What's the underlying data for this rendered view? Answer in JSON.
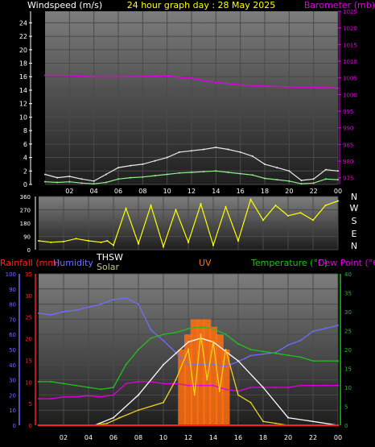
{
  "header": {
    "left_title": "Windspeed (m/s)",
    "center_title": "24 hour graph day : 28 May 2025",
    "right_title": "Barometer (mb)"
  },
  "time_ticks": [
    "02",
    "04",
    "06",
    "08",
    "10",
    "12",
    "14",
    "16",
    "18",
    "20",
    "22",
    "00"
  ],
  "colors": {
    "background": "#000000",
    "plot_top": "#7d7d7d",
    "plot_bottom": "#202020",
    "barometer": "#e000e0",
    "wind_gust": "#e8e8e8",
    "wind_avg": "#90f090",
    "direction": "#ffff00",
    "rainfall": "#ff2020",
    "humidity": "#6e6eff",
    "thsw": "#ffffff",
    "solar": "#c8c890",
    "uv": "#ff7010",
    "temperature": "#20c020",
    "dew_point": "#e000e0",
    "solar_line": "#f0d020"
  },
  "panel_wind": {
    "type": "line",
    "x_hours": [
      0,
      24
    ],
    "wind_axis": {
      "range": [
        0,
        25
      ],
      "ticks": [
        "0",
        "2",
        "4",
        "6",
        "8",
        "10",
        "12",
        "14",
        "16",
        "18",
        "20",
        "22",
        "24"
      ]
    },
    "baro_axis": {
      "range": [
        973,
        1025
      ],
      "ticks": [
        "975",
        "980",
        "985",
        "990",
        "995",
        "1000",
        "1005",
        "1010",
        "1015",
        "1020",
        "1025"
      ]
    },
    "series": [
      {
        "key": "barometer",
        "x": [
          0,
          2,
          4,
          6,
          8,
          9,
          10,
          11,
          12,
          13,
          14,
          15,
          16,
          18,
          20,
          22,
          24
        ],
        "y": [
          1005.8,
          1005.7,
          1005.3,
          1005.3,
          1005.4,
          1005.5,
          1005.6,
          1005.2,
          1004.9,
          1004.2,
          1003.6,
          1003.3,
          1002.9,
          1002.5,
          1002.3,
          1002.2,
          1001.9
        ]
      },
      {
        "key": "wind_gust",
        "x": [
          0,
          1,
          2,
          3,
          4,
          5,
          6,
          7,
          8,
          9,
          10,
          11,
          12,
          13,
          14,
          15,
          16,
          17,
          18,
          19,
          20,
          21,
          22,
          23,
          24
        ],
        "y": [
          1.5,
          1.0,
          1.2,
          0.8,
          0.5,
          1.5,
          2.5,
          2.8,
          3.0,
          3.5,
          4.0,
          4.8,
          5.0,
          5.2,
          5.5,
          5.2,
          4.8,
          4.2,
          3.0,
          2.5,
          2.0,
          0.6,
          0.8,
          2.2,
          2.0
        ]
      },
      {
        "key": "wind_avg",
        "x": [
          0,
          1,
          2,
          3,
          4,
          5,
          6,
          7,
          8,
          9,
          10,
          11,
          12,
          13,
          14,
          15,
          16,
          17,
          18,
          19,
          20,
          21,
          22,
          23,
          24
        ],
        "y": [
          0.4,
          0.3,
          0.4,
          0.2,
          0.1,
          0.3,
          0.8,
          1.0,
          1.1,
          1.3,
          1.5,
          1.7,
          1.8,
          1.9,
          2.0,
          1.8,
          1.6,
          1.4,
          0.9,
          0.7,
          0.5,
          0.1,
          0.2,
          0.8,
          0.7
        ]
      }
    ]
  },
  "panel_direction": {
    "type": "line",
    "deg_axis": {
      "range": [
        0,
        360
      ],
      "ticks": [
        "0",
        "90",
        "180",
        "270",
        "360"
      ]
    },
    "compass": [
      "N",
      "W",
      "S",
      "E",
      "N"
    ],
    "series": [
      {
        "key": "direction",
        "x": [
          0,
          1,
          2,
          3,
          4,
          5,
          5.5,
          6,
          7,
          8,
          9,
          10,
          11,
          12,
          13,
          14,
          15,
          16,
          17,
          18,
          19,
          20,
          21,
          22,
          23,
          24
        ],
        "y": [
          60,
          50,
          55,
          75,
          60,
          50,
          60,
          30,
          280,
          40,
          300,
          20,
          270,
          50,
          310,
          30,
          290,
          60,
          340,
          200,
          300,
          230,
          250,
          200,
          300,
          330
        ]
      }
    ]
  },
  "panel_bottom": {
    "labels": {
      "rainfall": "Rainfall (mm)",
      "humidity": "Humidity",
      "thsw": "THSW",
      "solar": "Solar",
      "uv": "UV",
      "temperature": "Temperature (°C)",
      "dew_point": "Dew Point (°C)"
    },
    "humidity_axis": {
      "range": [
        0,
        100
      ],
      "ticks": [
        "0",
        "10",
        "20",
        "30",
        "40",
        "50",
        "60",
        "70",
        "80",
        "90",
        "100"
      ]
    },
    "rain_axis": {
      "range": [
        0,
        35
      ],
      "ticks": [
        "0",
        "5",
        "10",
        "15",
        "20",
        "25",
        "30",
        "35"
      ]
    },
    "temp_axis": {
      "range": [
        0,
        40
      ],
      "ticks": [
        "0",
        "5",
        "10",
        "15",
        "20",
        "25",
        "30",
        "35",
        "40"
      ]
    },
    "series": [
      {
        "key": "humidity",
        "x": [
          0,
          1,
          2,
          3,
          4,
          5,
          6,
          7,
          8,
          9,
          10,
          11,
          12,
          13,
          14,
          15,
          16,
          17,
          18,
          19,
          20,
          21,
          22,
          23,
          24
        ],
        "y": [
          74,
          73,
          75,
          76,
          78,
          80,
          83,
          84,
          80,
          63,
          56,
          48,
          40,
          40,
          40,
          39,
          42,
          46,
          47,
          48,
          53,
          56,
          62,
          64,
          66
        ]
      },
      {
        "key": "temperature",
        "x": [
          0,
          1,
          2,
          3,
          4,
          5,
          6,
          7,
          8,
          9,
          10,
          11,
          12,
          13,
          14,
          15,
          16,
          17,
          18,
          19,
          20,
          21,
          22,
          23,
          24
        ],
        "y": [
          11.5,
          11.5,
          11.0,
          10.5,
          10.0,
          9.5,
          10.0,
          16.0,
          20.0,
          23.0,
          24.0,
          24.5,
          25.5,
          26.0,
          25.5,
          24.0,
          21.5,
          20.0,
          19.5,
          19.0,
          18.5,
          18.0,
          17.0,
          17.0,
          17.0
        ]
      },
      {
        "key": "dew_point",
        "x": [
          0,
          1,
          2,
          3,
          4,
          5,
          6,
          7,
          8,
          9,
          10,
          11,
          12,
          13,
          14,
          15,
          16,
          17,
          18,
          19,
          20,
          21,
          22,
          23,
          24
        ],
        "y": [
          7.0,
          7.0,
          7.5,
          7.5,
          7.8,
          7.5,
          8.0,
          11.0,
          11.5,
          11.5,
          11.0,
          11.0,
          10.5,
          10.5,
          10.5,
          9.5,
          9.0,
          10.0,
          10.0,
          10.0,
          10.0,
          10.5,
          10.5,
          10.5,
          10.5
        ]
      },
      {
        "key": "thsw",
        "x": [
          0,
          4.5,
          6,
          8,
          10,
          12,
          13,
          14,
          16,
          18,
          20,
          24
        ],
        "y": [
          0,
          0,
          2,
          8,
          16,
          22,
          23,
          22,
          17,
          10,
          2,
          0
        ]
      },
      {
        "key": "solar_line",
        "x": [
          0,
          4.5,
          5.5,
          6.5,
          8,
          10,
          11,
          12,
          12.5,
          13,
          13.5,
          14,
          14.5,
          15,
          16,
          17,
          18,
          19,
          20,
          24
        ],
        "y": [
          0,
          0,
          0.5,
          2,
          4,
          6,
          12,
          20,
          8,
          24,
          12,
          22,
          9,
          20,
          8,
          6,
          1,
          0.5,
          0,
          0
        ]
      },
      {
        "key": "rainfall",
        "x": [
          0,
          24
        ],
        "y": [
          0,
          0
        ]
      }
    ],
    "uv_bars": {
      "x": [
        11.5,
        12,
        12.5,
        13,
        13.5,
        14,
        14.5,
        15
      ],
      "y": [
        5,
        6,
        7,
        7,
        7,
        6.5,
        6,
        5
      ]
    }
  }
}
